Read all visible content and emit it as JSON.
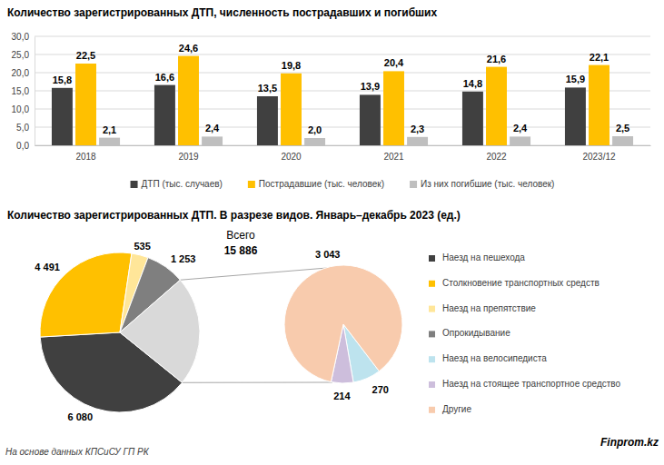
{
  "chart_data": [
    {
      "type": "bar",
      "title": "Количество зарегистрированных ДТП, численность пострадавших и погибших",
      "categories": [
        "2018",
        "2019",
        "2020",
        "2021",
        "2022",
        "2023/12"
      ],
      "series": [
        {
          "name": "ДТП (тыс. случаев)",
          "color": "#404040",
          "values": [
            15.8,
            16.6,
            13.5,
            13.9,
            14.8,
            15.9
          ],
          "value_labels": [
            "15,8",
            "16,6",
            "13,5",
            "13,9",
            "14,8",
            "15,9"
          ]
        },
        {
          "name": "Пострадавшие (тыс. человек)",
          "color": "#FFC000",
          "values": [
            22.5,
            24.6,
            19.8,
            20.4,
            21.6,
            22.1
          ],
          "value_labels": [
            "22,5",
            "24,6",
            "19,8",
            "20,4",
            "21,6",
            "22,1"
          ]
        },
        {
          "name": "Из них погибшие (тыс. человек)",
          "color": "#BFBFBF",
          "values": [
            2.1,
            2.4,
            2.0,
            2.3,
            2.4,
            2.5
          ],
          "value_labels": [
            "2,1",
            "2,4",
            "2,0",
            "2,3",
            "2,4",
            "2,5"
          ]
        }
      ],
      "ylim": [
        0,
        30
      ],
      "yticks": [
        {
          "value": 0,
          "label": "0,0"
        },
        {
          "value": 5,
          "label": "5,0"
        },
        {
          "value": 10,
          "label": "10,0"
        },
        {
          "value": 15,
          "label": "15,0"
        },
        {
          "value": 20,
          "label": "20,0"
        },
        {
          "value": 25,
          "label": "25,0"
        },
        {
          "value": 30,
          "label": "30,0"
        }
      ],
      "grid": true,
      "data_labels": true,
      "legend": "bottom"
    },
    {
      "type": "pie",
      "title": "Количество зарегистрированных ДТП. В разрезе видов. Январь–декабрь 2023 (ед.)",
      "total_label": "Всего",
      "total": "15 886",
      "series": [
        {
          "categories": [
            "Наезд на пешехода",
            "Столкновение транспортных средств",
            "Наезд на препятствие",
            "Опрокидывание"
          ],
          "values": [
            6080,
            4491,
            535,
            1253
          ],
          "value_labels": [
            "6 080",
            "4 491",
            "535",
            "1 253"
          ],
          "colors": [
            "#404040",
            "#FFC000",
            "#FFE699",
            "#7F7F7F"
          ]
        },
        {
          "categories": [
            "Наезд на велосипедиста",
            "Наезд на стоящее транспортное средство",
            "Другие"
          ],
          "values": [
            270,
            214,
            3043
          ],
          "value_labels": [
            "270",
            "214",
            "3 043"
          ],
          "colors": [
            "#BDE3EE",
            "#CDBEDC",
            "#F8CBAD"
          ],
          "color": "#D9D9D9"
        }
      ],
      "data_labels": true,
      "legend": "right"
    }
  ],
  "source": "На основе данных КПСиСУ ГП РК",
  "brand": "Finprom.kz"
}
